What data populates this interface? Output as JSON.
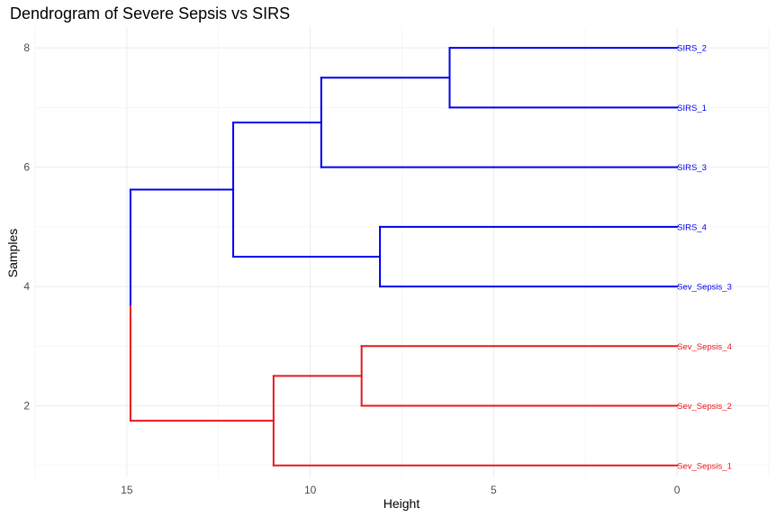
{
  "chart_data": {
    "type": "dendrogram",
    "title": "Dendrogram of Severe Sepsis vs SIRS",
    "xlabel": "Height",
    "ylabel": "Samples",
    "xlim": [
      17.5,
      -2.5
    ],
    "ylim": [
      0.8,
      8.35
    ],
    "x_ticks": [
      15,
      10,
      5,
      0
    ],
    "y_ticks": [
      2,
      4,
      6,
      8
    ],
    "grid": true,
    "colors": {
      "red": "#e41a1c",
      "blue": "#0000ee"
    },
    "leaves": [
      {
        "label": "Sev_Sepsis_1",
        "y": 1,
        "color": "red"
      },
      {
        "label": "Sev_Sepsis_2",
        "y": 2,
        "color": "red"
      },
      {
        "label": "Sev_Sepsis_4",
        "y": 3,
        "color": "red"
      },
      {
        "label": "Sev_Sepsis_3",
        "y": 4,
        "color": "blue"
      },
      {
        "label": "SIRS_4",
        "y": 5,
        "color": "blue"
      },
      {
        "label": "SIRS_3",
        "y": 6,
        "color": "blue"
      },
      {
        "label": "SIRS_1",
        "y": 7,
        "color": "blue"
      },
      {
        "label": "SIRS_2",
        "y": 8,
        "color": "blue"
      }
    ],
    "merges": [
      {
        "height": 6.2,
        "y_low": 7,
        "y_high": 8,
        "h_low": 0,
        "h_high": 0,
        "color": "blue"
      },
      {
        "height": 8.1,
        "y_low": 4,
        "y_high": 5,
        "h_low": 0,
        "h_high": 0,
        "color": "blue"
      },
      {
        "height": 8.6,
        "y_low": 2,
        "y_high": 3,
        "h_low": 0,
        "h_high": 0,
        "color": "red"
      },
      {
        "height": 9.7,
        "y_low": 6,
        "y_high": 7.5,
        "h_low": 0,
        "h_high": 6.2,
        "color": "blue"
      },
      {
        "height": 11.0,
        "y_low": 1,
        "y_high": 2.5,
        "h_low": 0,
        "h_high": 8.6,
        "color": "red"
      },
      {
        "height": 12.1,
        "y_low": 4.5,
        "y_high": 6.75,
        "h_low": 8.1,
        "h_high": 9.7,
        "color": "blue"
      },
      {
        "height": 14.9,
        "y_low": 1.75,
        "y_high": 5.625,
        "h_low": 11.0,
        "h_high": 12.1,
        "color_low": "red",
        "color_high": "blue",
        "split_y": 3.7
      }
    ]
  }
}
